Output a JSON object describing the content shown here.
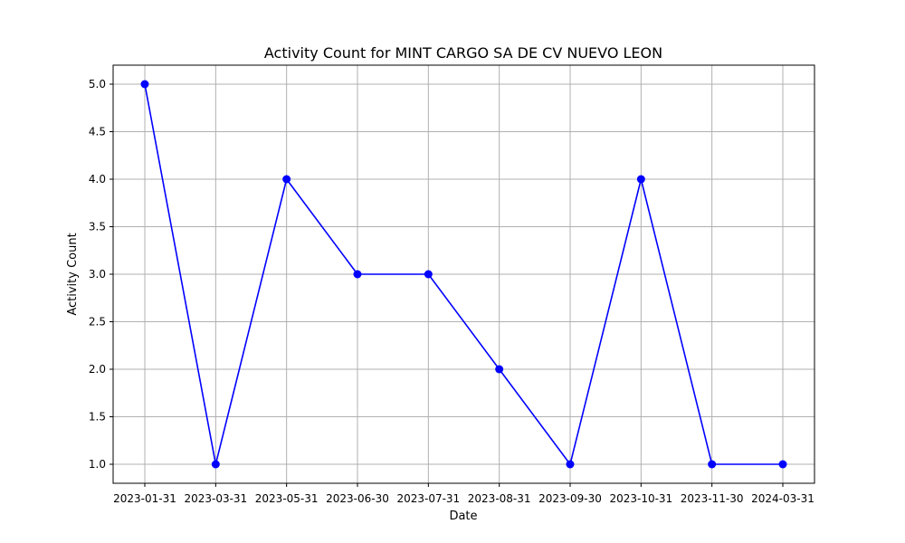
{
  "chart_data": {
    "type": "line",
    "title": "Activity Count for MINT CARGO SA DE CV NUEVO LEON",
    "xlabel": "Date",
    "ylabel": "Activity Count",
    "categories": [
      "2023-01-31",
      "2023-03-31",
      "2023-05-31",
      "2023-06-30",
      "2023-07-31",
      "2023-08-31",
      "2023-09-30",
      "2023-10-31",
      "2023-11-30",
      "2024-03-31"
    ],
    "series": [
      {
        "values": [
          5,
          1,
          4,
          3,
          3,
          2,
          1,
          4,
          1,
          1
        ],
        "color": "#0000ff",
        "marker": "circle"
      }
    ],
    "ylim": [
      0.8,
      5.2
    ],
    "yticks": [
      1.0,
      1.5,
      2.0,
      2.5,
      3.0,
      3.5,
      4.0,
      4.5,
      5.0
    ],
    "ytick_labels": [
      "1.0",
      "1.5",
      "2.0",
      "2.5",
      "3.0",
      "3.5",
      "4.0",
      "4.5",
      "5.0"
    ],
    "grid": true
  }
}
